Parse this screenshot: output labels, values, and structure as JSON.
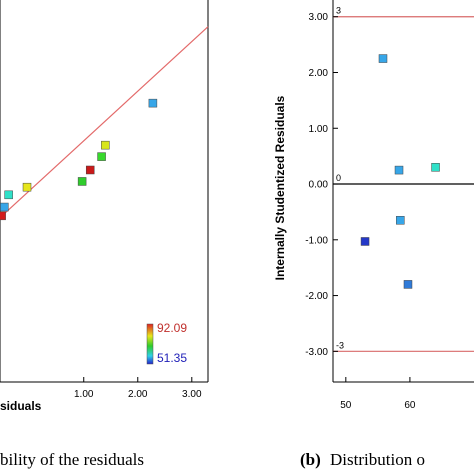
{
  "chart_data": [
    {
      "type": "scatter",
      "panel": "left",
      "title": "",
      "xlabel": "siduals",
      "ylabel": "",
      "x_ticks": [
        "1.00",
        "2.00",
        "3.00"
      ],
      "xlim": [
        -0.55,
        3.3
      ],
      "ylim": [
        0,
        1
      ],
      "caption": "bility of the residuals",
      "color_scale": {
        "max_label": "92.09",
        "min_label": "51.35",
        "max_color": "#dd2222",
        "min_color": "#2222cc"
      },
      "fit_line": {
        "x1": -0.55,
        "y1": 0.43,
        "x2": 3.3,
        "y2": 0.93
      },
      "points": [
        {
          "x": -0.52,
          "y": 0.435,
          "color": "#d21b1b"
        },
        {
          "x": -0.47,
          "y": 0.458,
          "color": "#37a6e8"
        },
        {
          "x": -0.39,
          "y": 0.49,
          "color": "#2fe0c8"
        },
        {
          "x": -0.05,
          "y": 0.51,
          "color": "#e6e61c"
        },
        {
          "x": 0.97,
          "y": 0.525,
          "color": "#2fcc2c"
        },
        {
          "x": 1.12,
          "y": 0.555,
          "color": "#c91a1a"
        },
        {
          "x": 1.33,
          "y": 0.59,
          "color": "#38d82c"
        },
        {
          "x": 1.4,
          "y": 0.62,
          "color": "#d8e61c"
        },
        {
          "x": 2.28,
          "y": 0.73,
          "color": "#37a6e8"
        }
      ]
    },
    {
      "type": "scatter",
      "panel": "right",
      "title": "",
      "xlabel": "",
      "ylabel": "Internally Studentized Residuals",
      "x_ticks": [
        "50",
        "60"
      ],
      "y_ticks": [
        "3.00",
        "2.00",
        "1.00",
        "0.00",
        "-1.00",
        "-2.00",
        "-3.00"
      ],
      "xlim": [
        48,
        70
      ],
      "ylim": [
        -3.55,
        3.3
      ],
      "caption_bold": "(b)",
      "caption": "Distribution o",
      "reference_lines": [
        {
          "y": 3,
          "label": "3",
          "color": "#d86a6a"
        },
        {
          "y": 0,
          "label": "0",
          "color": "#000000"
        },
        {
          "y": -3,
          "label": "-3",
          "color": "#d86a6a"
        }
      ],
      "points": [
        {
          "x": 55.8,
          "y": 2.25,
          "color": "#37a6e8"
        },
        {
          "x": 58.3,
          "y": 0.25,
          "color": "#37a6e8"
        },
        {
          "x": 64.0,
          "y": 0.3,
          "color": "#2fe0c8"
        },
        {
          "x": 53.0,
          "y": -1.03,
          "color": "#2438c8"
        },
        {
          "x": 58.5,
          "y": -0.65,
          "color": "#37a6e8"
        },
        {
          "x": 59.7,
          "y": -1.8,
          "color": "#2f7ad8"
        }
      ]
    }
  ]
}
